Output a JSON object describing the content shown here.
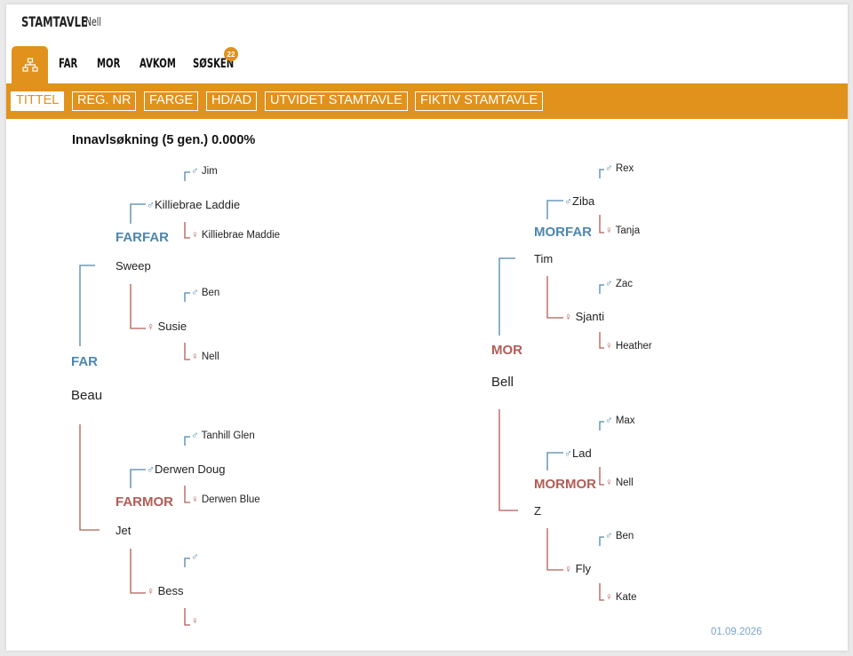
{
  "header": {
    "title": "STAMTAVLE",
    "subtitle": "Nell"
  },
  "tabs": [
    {
      "label": "FAR"
    },
    {
      "label": "MOR"
    },
    {
      "label": "AVKOM"
    },
    {
      "label": "SØSKEN",
      "badge": "22"
    }
  ],
  "toolbar": {
    "buttons": [
      "TITTEL",
      "REG. NR",
      "FARGE",
      "HD/AD",
      "UTVIDET STAMTAVLE",
      "FIKTIV STAMTAVLE"
    ],
    "active": "TITTEL"
  },
  "coi_text": "Innavlsøkning (5 gen.) 0.000%",
  "headings": {
    "far": "FAR",
    "mor": "MOR",
    "farfar": "FARFAR",
    "farmor": "FARMOR",
    "morfar": "MORFAR",
    "mormor": "MORMOR"
  },
  "pedigree": {
    "far": "Beau",
    "far_far": "Sweep",
    "far_mor": "Jet",
    "far_far_far": "Killiebrae Laddie",
    "far_far_mor": "Susie",
    "far_mor_far": "Derwen Doug",
    "far_mor_mor": "Bess",
    "g4_left": [
      "Jim",
      "Killiebrae Maddie",
      "Ben",
      "Nell",
      "Tanhill Glen",
      "Derwen Blue",
      "",
      ""
    ],
    "mor": "Bell",
    "mor_far": "Tim",
    "mor_mor": "Z",
    "mor_far_far": "Ziba",
    "mor_far_mor": "Sjanti",
    "mor_mor_far": "Lad",
    "mor_mor_mor": "Fly",
    "g4_right": [
      "Rex",
      "Tanja",
      "Zac",
      "Heather",
      "Max",
      "Nell",
      "Ben",
      "Kate"
    ]
  },
  "colors": {
    "accent": "#e0921c",
    "male": "#4d86ae",
    "female": "#b25c55"
  },
  "date": "01.09.2026"
}
